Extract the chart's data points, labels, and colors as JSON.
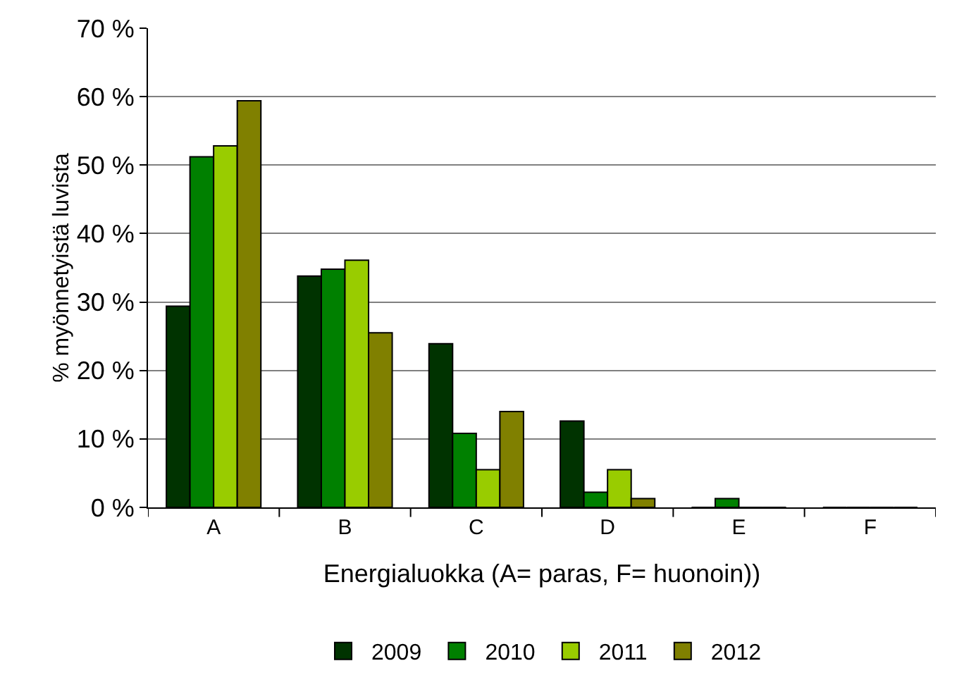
{
  "chart_data": {
    "type": "bar",
    "xlabel": "Energialuokka (A= paras, F= huonoin))",
    "ylabel": "% myönnetyistä luvista",
    "categories": [
      "A",
      "B",
      "C",
      "D",
      "E",
      "F"
    ],
    "series": [
      {
        "name": "2009",
        "color": "#003300",
        "values": [
          29.4,
          33.8,
          23.9,
          12.6,
          0,
          0
        ]
      },
      {
        "name": "2010",
        "color": "#008000",
        "values": [
          51.2,
          34.8,
          10.8,
          2.2,
          1.3,
          0
        ]
      },
      {
        "name": "2011",
        "color": "#99cc00",
        "values": [
          52.8,
          36.1,
          5.5,
          5.5,
          0,
          0
        ]
      },
      {
        "name": "2012",
        "color": "#808000",
        "values": [
          59.4,
          25.5,
          14.0,
          1.3,
          0,
          0
        ]
      }
    ],
    "ylim": [
      0,
      70
    ],
    "yticks": [
      {
        "value": 0,
        "label": "0 %"
      },
      {
        "value": 10,
        "label": "10 %"
      },
      {
        "value": 20,
        "label": "20 %"
      },
      {
        "value": 30,
        "label": "30 %"
      },
      {
        "value": 40,
        "label": "40 %"
      },
      {
        "value": 50,
        "label": "50 %"
      },
      {
        "value": 60,
        "label": "60 %"
      },
      {
        "value": 70,
        "label": "70 %"
      }
    ],
    "grid": "y",
    "legend": "bottom"
  }
}
